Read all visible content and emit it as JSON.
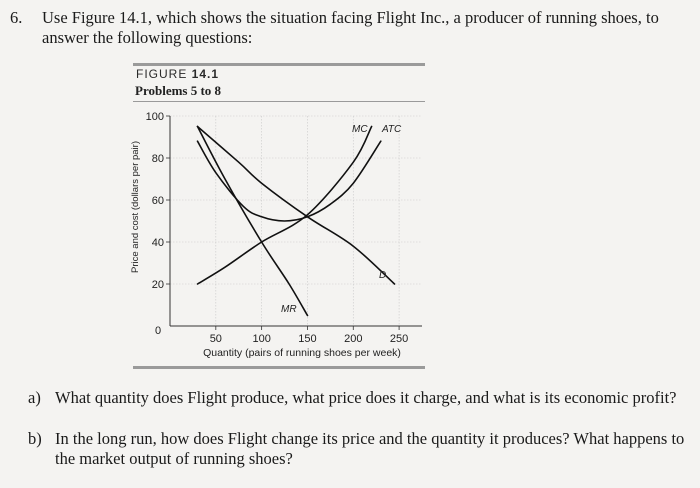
{
  "question": {
    "number": "6.",
    "text": "Use Figure 14.1, which shows the situation facing Flight Inc., a producer of running shoes, to answer the following questions:"
  },
  "figure": {
    "label_prefix": "FIGURE ",
    "label_number": "14.1",
    "subtitle": "Problems 5 to 8"
  },
  "chart_data": {
    "type": "line",
    "ylabel": "Price and cost (dollars per pair)",
    "xlabel": "Quantity (pairs of running shoes per week)",
    "xlim": [
      0,
      275
    ],
    "ylim": [
      0,
      100
    ],
    "x_ticks": [
      50,
      100,
      150,
      200,
      250
    ],
    "y_ticks": [
      0,
      20,
      40,
      60,
      80,
      100
    ],
    "grid": true,
    "series": [
      {
        "name": "MC",
        "x": [
          30,
          60,
          100,
          150,
          200,
          220
        ],
        "y": [
          20,
          28,
          40,
          53,
          78,
          95
        ]
      },
      {
        "name": "ATC",
        "x": [
          30,
          50,
          80,
          100,
          125,
          150,
          175,
          200,
          230
        ],
        "y": [
          88,
          73,
          57,
          52,
          50,
          52,
          58,
          68,
          88
        ]
      },
      {
        "name": "D",
        "x": [
          30,
          75,
          100,
          150,
          200,
          245
        ],
        "y": [
          95,
          78,
          68,
          52,
          38,
          20
        ]
      },
      {
        "name": "MR",
        "x": [
          30,
          60,
          100,
          130,
          150
        ],
        "y": [
          95,
          70,
          40,
          20,
          5
        ]
      }
    ]
  },
  "questions": [
    {
      "label": "a)",
      "text": "What quantity does Flight produce, what price does it charge, and what is its economic profit?"
    },
    {
      "label": "b)",
      "text": "In the long run, how does Flight change its price and the quantity it produces? What happens to the market output of running shoes?"
    }
  ]
}
